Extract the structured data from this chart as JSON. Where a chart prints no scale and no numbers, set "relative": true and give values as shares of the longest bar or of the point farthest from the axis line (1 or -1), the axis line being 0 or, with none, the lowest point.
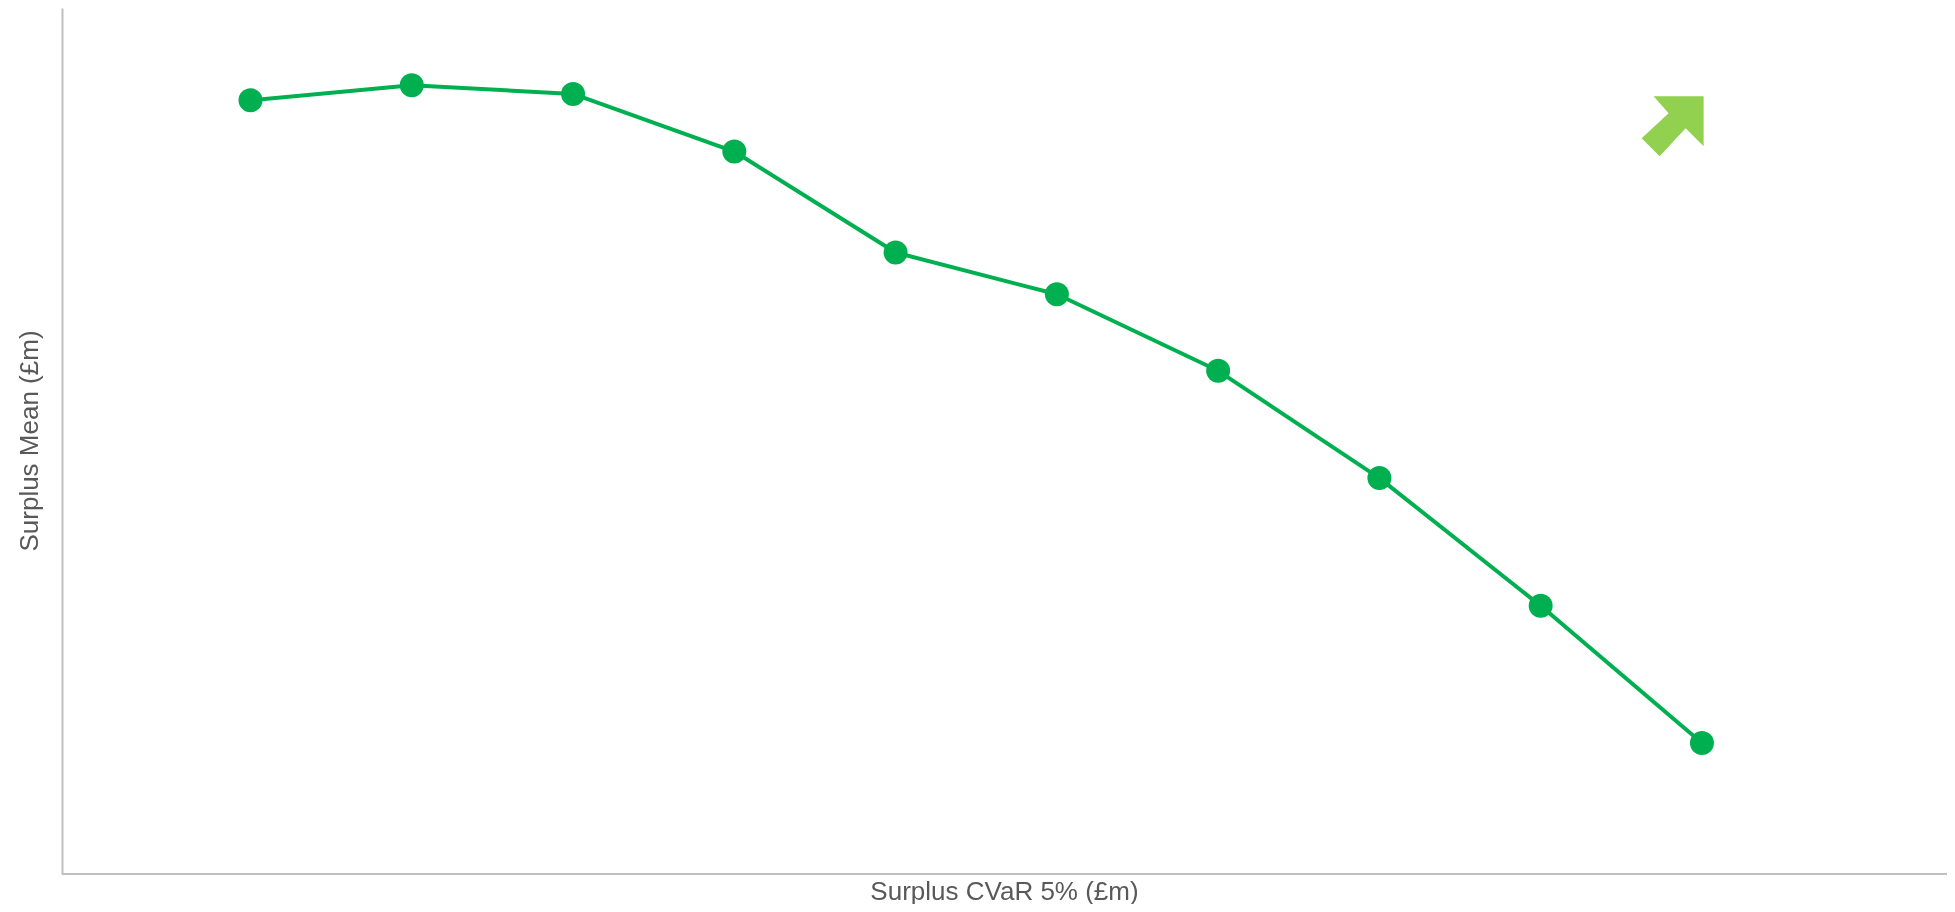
{
  "chart_data": {
    "type": "line",
    "xlabel": "Surplus CVaR 5% (£m)",
    "ylabel": "Surplus Mean (£m)",
    "relative": true,
    "marker": "circle",
    "categories": [
      null,
      null,
      null,
      null,
      null,
      null,
      null,
      null,
      null,
      null
    ],
    "series": [
      {
        "color": "#00b050",
        "values": [
          0.981,
          1,
          0.989,
          0.916,
          0.788,
          0.735,
          0.638,
          0.502,
          0.34,
          0.166
        ]
      }
    ]
  }
}
